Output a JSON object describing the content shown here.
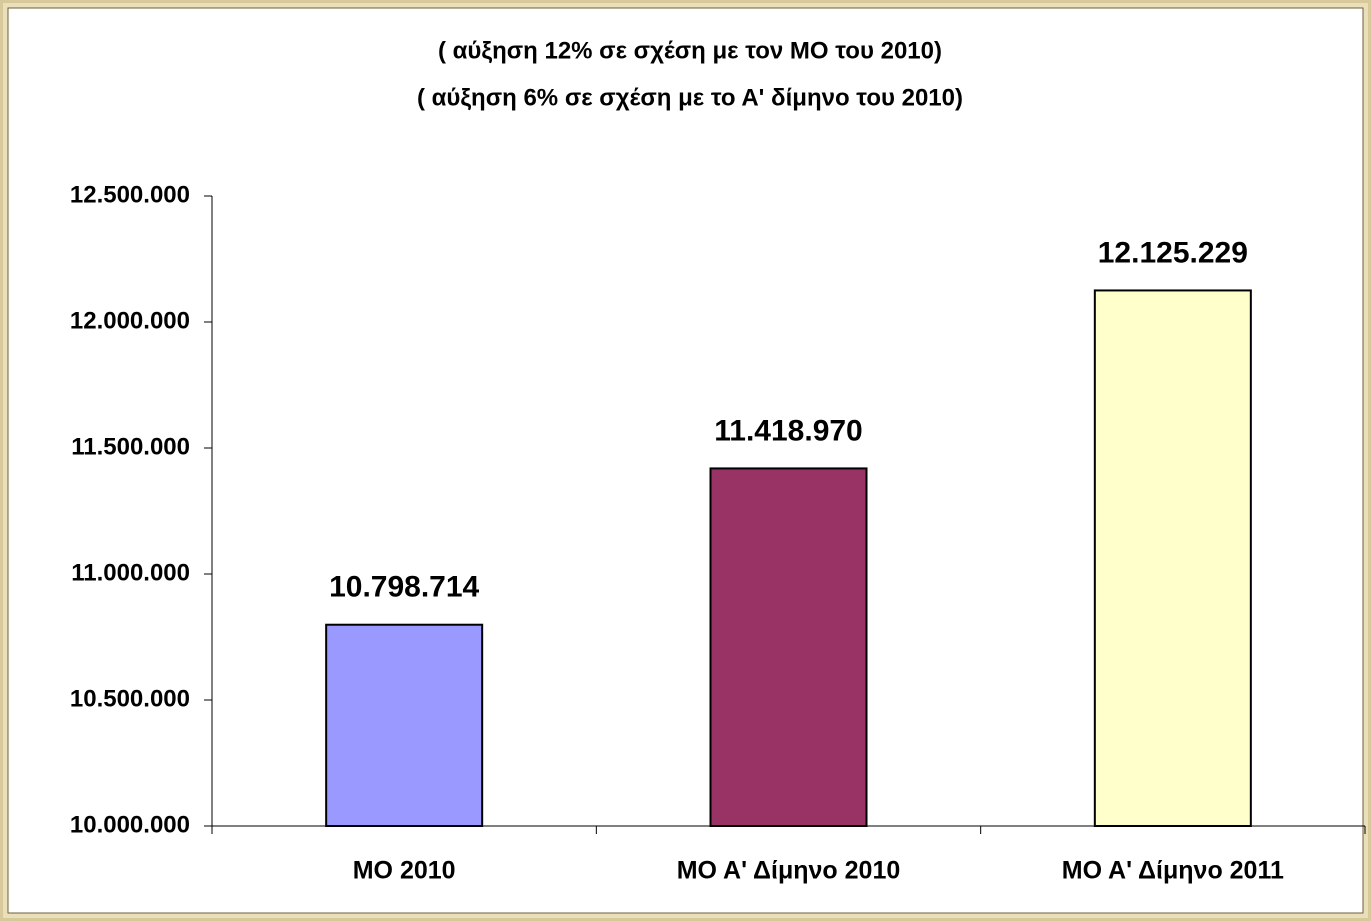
{
  "chart_data": {
    "type": "bar",
    "title": "( αύξηση 12%  σε σχέση με τον ΜΟ του 2010)",
    "subtitle": "( αύξηση 6%  σε σχέση με το Α' δίμηνο του 2010)",
    "categories": [
      "ΜΟ 2010",
      "ΜΟ Α' Δίμηνο 2010",
      "ΜΟ Α' Δίμηνο 2011"
    ],
    "values": [
      10798714,
      11418970,
      12125229
    ],
    "value_labels": [
      "10.798.714",
      "11.418.970",
      "12.125.229"
    ],
    "colors": [
      "#9999ff",
      "#993366",
      "#ffffcc"
    ],
    "ylim": [
      10000000,
      12500000
    ],
    "yticks": [
      {
        "value": 10000000,
        "label": "10.000.000"
      },
      {
        "value": 10500000,
        "label": "10.500.000"
      },
      {
        "value": 11000000,
        "label": "11.000.000"
      },
      {
        "value": 11500000,
        "label": "11.500.000"
      },
      {
        "value": 12000000,
        "label": "12.000.000"
      },
      {
        "value": 12500000,
        "label": "12.500.000"
      }
    ],
    "grid": false
  }
}
